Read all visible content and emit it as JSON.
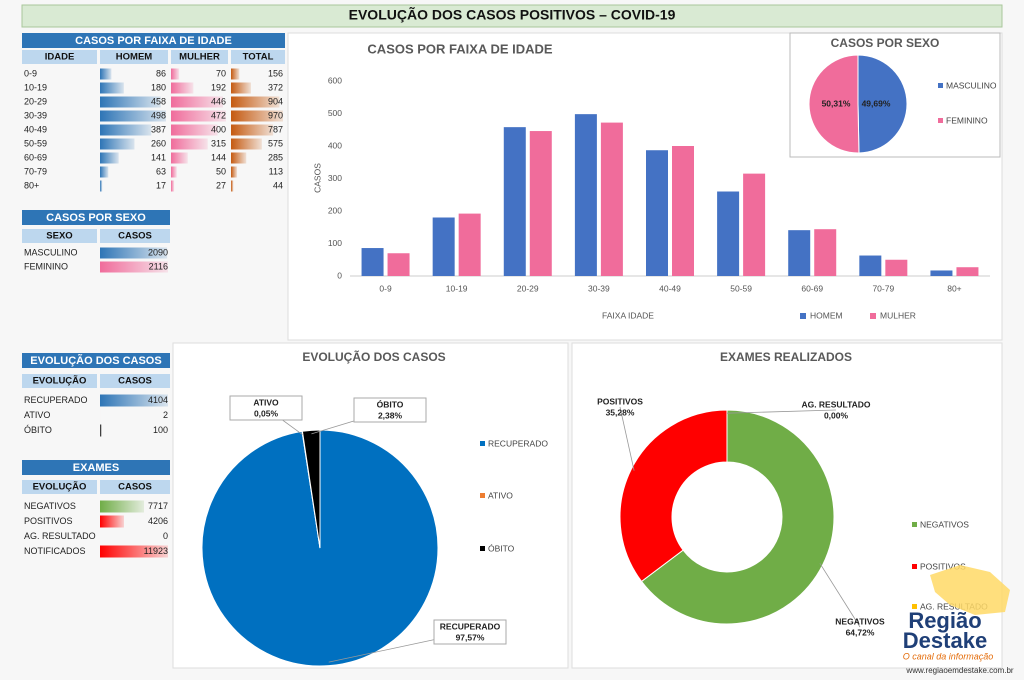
{
  "title": "EVOLUÇÃO DOS  CASOS POSITIVOS – COVID-19",
  "tables": [
    {
      "title": "CASOS POR FAIXA DE IDADE",
      "columns": [
        "IDADE",
        "HOMEM",
        "MULHER",
        "TOTAL"
      ],
      "bar_colors": [
        "#2e75b6",
        "#f06c9b",
        "#c55a11"
      ],
      "rows": [
        [
          "0-9",
          86,
          70,
          156
        ],
        [
          "10-19",
          180,
          192,
          372
        ],
        [
          "20-29",
          458,
          446,
          904
        ],
        [
          "30-39",
          498,
          472,
          970
        ],
        [
          "40-49",
          387,
          400,
          787
        ],
        [
          "50-59",
          260,
          315,
          575
        ],
        [
          "60-69",
          141,
          144,
          285
        ],
        [
          "70-79",
          63,
          50,
          113
        ],
        [
          "80+",
          17,
          27,
          44
        ]
      ]
    },
    {
      "title": "CASOS POR SEXO",
      "columns": [
        "SEXO",
        "CASOS"
      ],
      "bar_colors": [
        "#2e75b6",
        "#f06c9b"
      ],
      "rows": [
        [
          "MASCULINO",
          2090
        ],
        [
          "FEMININO",
          2116
        ]
      ]
    },
    {
      "title": "EVOLUÇÃO DOS CASOS",
      "columns": [
        "EVOLUÇÃO",
        "CASOS"
      ],
      "bar_colors": [
        "#2e75b6",
        "#ff0000",
        "#000000"
      ],
      "rows": [
        [
          "RECUPERADO",
          4104
        ],
        [
          "ATIVO",
          2
        ],
        [
          "ÓBITO",
          100
        ]
      ]
    },
    {
      "title": "EXAMES",
      "columns": [
        "EVOLUÇÃO",
        "CASOS"
      ],
      "bar_colors": [
        "#70ad47",
        "#ff0000",
        "#000000",
        "#ff0000"
      ],
      "rows": [
        [
          "NEGATIVOS",
          7717
        ],
        [
          "POSITIVOS",
          4206
        ],
        [
          "AG. RESULTADO",
          0
        ],
        [
          "NOTIFICADOS",
          11923
        ]
      ]
    }
  ],
  "chart_data": [
    {
      "type": "bar",
      "title": "CASOS POR FAIXA DE IDADE",
      "x_label": "FAIXA IDADE",
      "y_label": "CASOS",
      "categories": [
        "0-9",
        "10-19",
        "20-29",
        "30-39",
        "40-49",
        "50-59",
        "60-69",
        "70-79",
        "80+"
      ],
      "series": [
        {
          "name": "HOMEM",
          "color": "#4472c4",
          "values": [
            86,
            180,
            458,
            498,
            387,
            260,
            141,
            63,
            17
          ]
        },
        {
          "name": "MULHER",
          "color": "#f06c9b",
          "values": [
            70,
            192,
            446,
            472,
            400,
            315,
            144,
            50,
            27
          ]
        }
      ],
      "ylim": [
        0,
        600
      ],
      "yticks": [
        0,
        100,
        200,
        300,
        400,
        500,
        600
      ],
      "grid": false,
      "legend": "bottom"
    },
    {
      "type": "pie",
      "title": "CASOS POR SEXO",
      "categories": [
        "MASCULINO",
        "FEMININO"
      ],
      "values": [
        49.69,
        50.31
      ],
      "value_labels": [
        "49,69%",
        "50,31%"
      ],
      "colors": [
        "#4472c4",
        "#f06c9b"
      ],
      "legend": "right"
    },
    {
      "type": "pie",
      "title": "EVOLUÇÃO DOS CASOS",
      "categories": [
        "RECUPERADO",
        "ATIVO",
        "ÓBITO"
      ],
      "values": [
        97.57,
        0.05,
        2.38
      ],
      "value_labels": [
        "97,57%",
        "0,05%",
        "2,38%"
      ],
      "colors": [
        "#0070c0",
        "#ed7d31",
        "#000000"
      ],
      "legend": "right"
    },
    {
      "type": "doughnut",
      "title": "EXAMES REALIZADOS",
      "categories": [
        "NEGATIVOS",
        "POSITIVOS",
        "AG. RESULTADO"
      ],
      "values": [
        64.72,
        35.28,
        0
      ],
      "value_labels": [
        "64,72%",
        "35,28%",
        "0,00%"
      ],
      "colors": [
        "#70ad47",
        "#ff0000",
        "#ffc000"
      ],
      "legend": "right"
    }
  ],
  "logo": {
    "line1": "Região",
    "line2": "Destake",
    "tagline": "O canal da informação",
    "url": "www.regiaoemdestake.com.br"
  }
}
